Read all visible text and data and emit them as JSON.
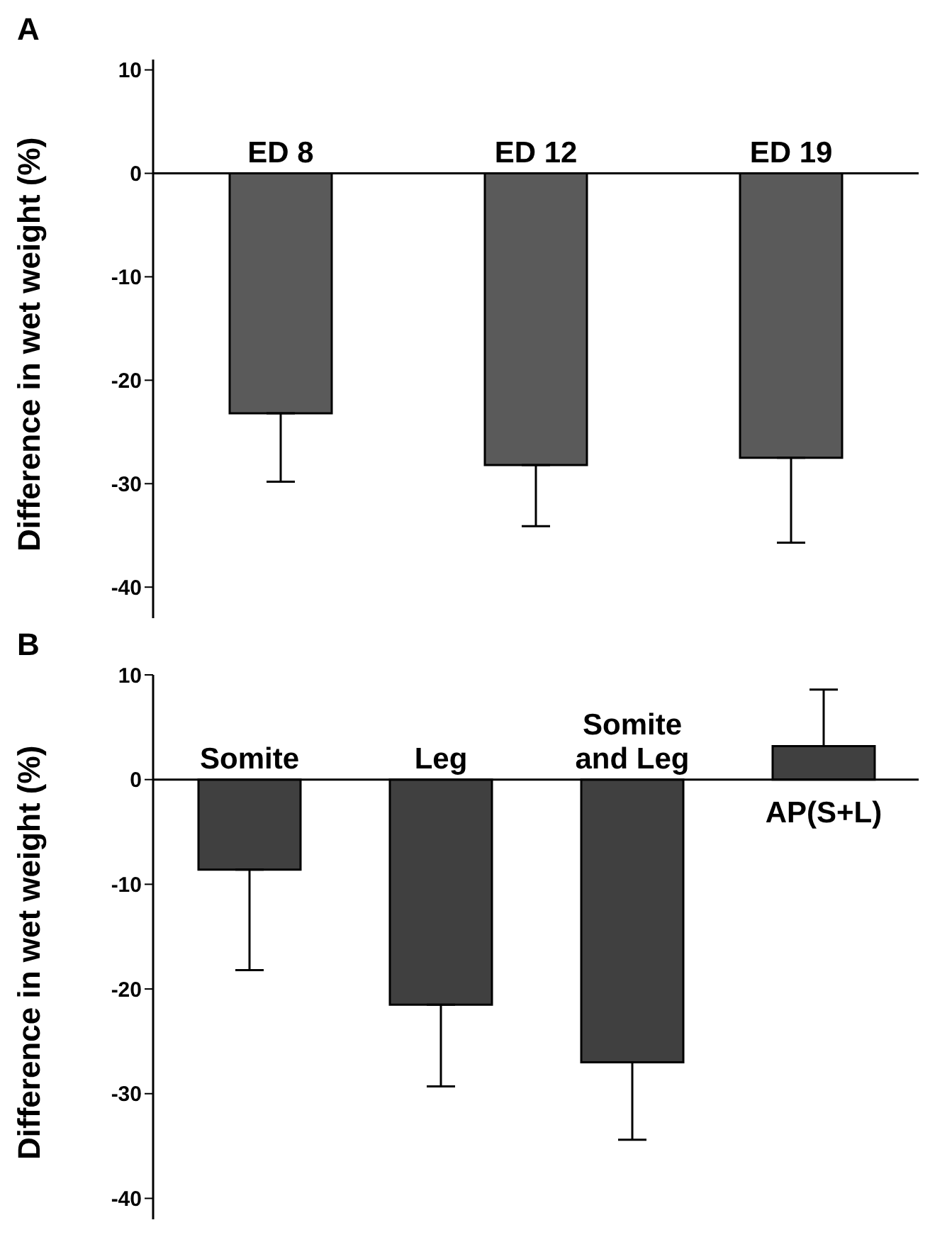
{
  "chart_data": [
    {
      "type": "bar",
      "title": "A",
      "ylabel": "Difference in wet weight (%)",
      "categories": [
        "ED 8",
        "ED 12",
        "ED 19"
      ],
      "values": [
        -23.2,
        -28.2,
        -27.5
      ],
      "color": "#5a5a5a",
      "errors": [
        [
          -29.8,
          -23.2
        ],
        [
          -34.1,
          -28.2
        ],
        [
          -35.7,
          -27.5
        ]
      ],
      "ylim": [
        -43,
        11
      ],
      "yticks": [
        10,
        0,
        -10,
        -20,
        -30,
        -40
      ]
    },
    {
      "type": "bar",
      "title": "B",
      "ylabel": "Difference in wet weight (%)",
      "categories": [
        "Somite",
        "Leg",
        "Somite and Leg",
        "AP(S+L)"
      ],
      "values": [
        -8.6,
        -21.5,
        -27.0,
        3.2
      ],
      "color": "#404040",
      "errors": [
        [
          -18.2,
          -8.6
        ],
        [
          -29.3,
          -21.5
        ],
        [
          -34.4,
          -27.0
        ],
        [
          3.2,
          8.6
        ]
      ],
      "ylim": [
        -42,
        10
      ],
      "yticks": [
        10,
        0,
        -10,
        -20,
        -30,
        -40
      ]
    }
  ]
}
